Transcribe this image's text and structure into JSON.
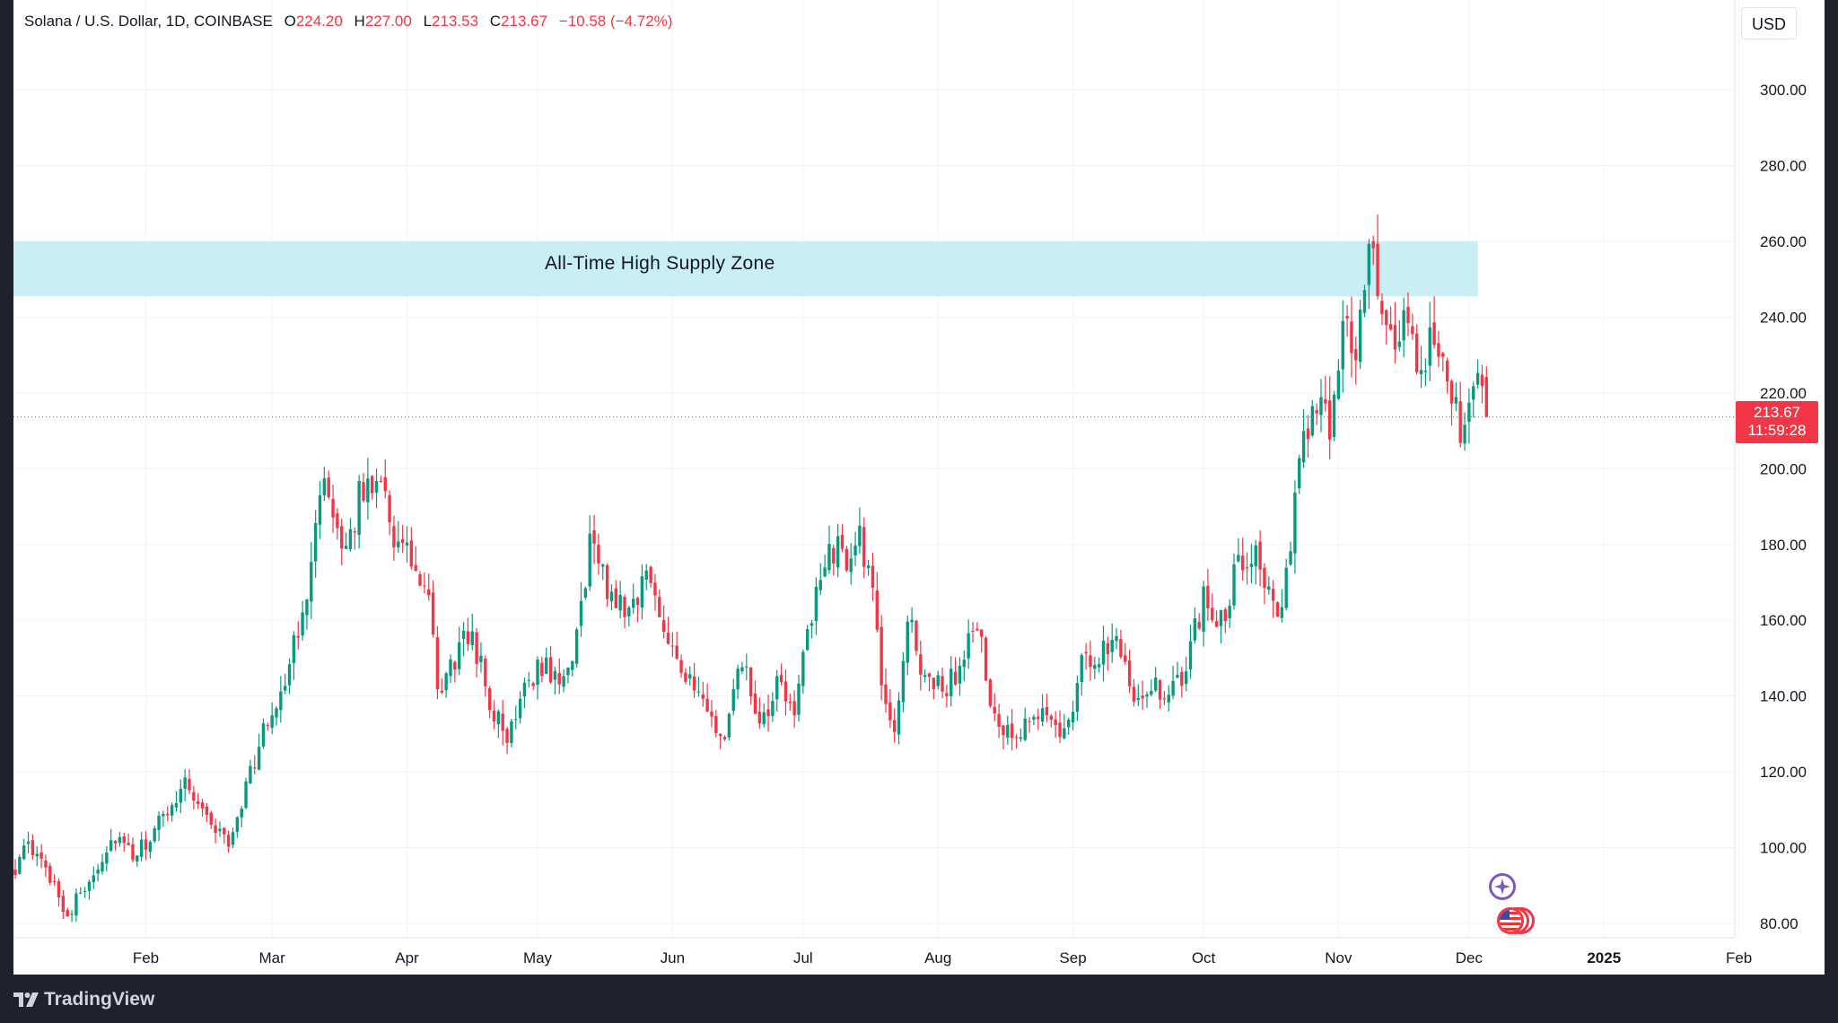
{
  "legend": {
    "symbol": "Solana / U.S. Dollar, 1D, COINBASE",
    "open_label": "O",
    "open_value": "224.20",
    "high_label": "H",
    "high_value": "227.00",
    "low_label": "L",
    "low_value": "213.53",
    "close_label": "C",
    "close_value": "213.67",
    "change": "−10.58 (−4.72%)"
  },
  "currency_button": "USD",
  "price_tag": {
    "price": "213.67",
    "countdown": "11:59:28"
  },
  "branding": {
    "logo_text": "TradingView"
  },
  "colors": {
    "up": "#089981",
    "down": "#f23645",
    "zone": "#c9eef4",
    "grid": "#f0f3fa",
    "axis_text": "#131722",
    "background": "#ffffff",
    "frame": "#1e222d"
  },
  "icons": [
    "star-event-icon",
    "us-flag-event-icon",
    "tradingview-logo-icon"
  ],
  "chart_data": {
    "type": "candlestick",
    "symbol": "SOLUSD",
    "timeframe": "1D",
    "exchange": "COINBASE",
    "ylim": [
      75,
      315
    ],
    "y_ticks": [
      "80.00",
      "100.00",
      "120.00",
      "140.00",
      "160.00",
      "180.00",
      "200.00",
      "220.00",
      "240.00",
      "260.00",
      "280.00",
      "300.00"
    ],
    "x_ticks": [
      {
        "label": "Feb",
        "day": 31
      },
      {
        "label": "Mar",
        "day": 60
      },
      {
        "label": "Apr",
        "day": 91
      },
      {
        "label": "May",
        "day": 121
      },
      {
        "label": "Jun",
        "day": 152
      },
      {
        "label": "Jul",
        "day": 182
      },
      {
        "label": "Aug",
        "day": 213
      },
      {
        "label": "Sep",
        "day": 244
      },
      {
        "label": "Oct",
        "day": 274
      },
      {
        "label": "Nov",
        "day": 305
      },
      {
        "label": "Dec",
        "day": 335
      },
      {
        "label": "2025",
        "day": 366
      },
      {
        "label": "Feb",
        "day": 397
      }
    ],
    "x_range_days": [
      1,
      405
    ],
    "grid": true,
    "last_price": 213.67,
    "zone": {
      "label": "All-Time High Supply Zone",
      "low": 245.5,
      "high": 260,
      "end_day": 337
    },
    "anchors": [
      {
        "day": 1,
        "price": 95
      },
      {
        "day": 4,
        "price": 100
      },
      {
        "day": 10,
        "price": 91
      },
      {
        "day": 13,
        "price": 82
      },
      {
        "day": 18,
        "price": 92
      },
      {
        "day": 24,
        "price": 103
      },
      {
        "day": 28,
        "price": 97
      },
      {
        "day": 33,
        "price": 104
      },
      {
        "day": 40,
        "price": 118
      },
      {
        "day": 45,
        "price": 108
      },
      {
        "day": 50,
        "price": 101
      },
      {
        "day": 55,
        "price": 120
      },
      {
        "day": 58,
        "price": 130
      },
      {
        "day": 63,
        "price": 145
      },
      {
        "day": 67,
        "price": 160
      },
      {
        "day": 71,
        "price": 197
      },
      {
        "day": 73,
        "price": 190
      },
      {
        "day": 76,
        "price": 175
      },
      {
        "day": 80,
        "price": 192
      },
      {
        "day": 85,
        "price": 200
      },
      {
        "day": 88,
        "price": 182
      },
      {
        "day": 92,
        "price": 175
      },
      {
        "day": 96,
        "price": 165
      },
      {
        "day": 98,
        "price": 140
      },
      {
        "day": 102,
        "price": 150
      },
      {
        "day": 106,
        "price": 157
      },
      {
        "day": 110,
        "price": 138
      },
      {
        "day": 114,
        "price": 128
      },
      {
        "day": 118,
        "price": 145
      },
      {
        "day": 123,
        "price": 148
      },
      {
        "day": 127,
        "price": 142
      },
      {
        "day": 131,
        "price": 162
      },
      {
        "day": 133,
        "price": 182
      },
      {
        "day": 137,
        "price": 168
      },
      {
        "day": 142,
        "price": 163
      },
      {
        "day": 146,
        "price": 172
      },
      {
        "day": 150,
        "price": 160
      },
      {
        "day": 155,
        "price": 145
      },
      {
        "day": 160,
        "price": 135
      },
      {
        "day": 164,
        "price": 128
      },
      {
        "day": 168,
        "price": 150
      },
      {
        "day": 172,
        "price": 130
      },
      {
        "day": 176,
        "price": 142
      },
      {
        "day": 180,
        "price": 138
      },
      {
        "day": 184,
        "price": 160
      },
      {
        "day": 188,
        "price": 180
      },
      {
        "day": 192,
        "price": 176
      },
      {
        "day": 195,
        "price": 184
      },
      {
        "day": 198,
        "price": 165
      },
      {
        "day": 201,
        "price": 135
      },
      {
        "day": 203,
        "price": 132
      },
      {
        "day": 206,
        "price": 160
      },
      {
        "day": 210,
        "price": 145
      },
      {
        "day": 214,
        "price": 142
      },
      {
        "day": 218,
        "price": 147
      },
      {
        "day": 222,
        "price": 160
      },
      {
        "day": 226,
        "price": 133
      },
      {
        "day": 230,
        "price": 128
      },
      {
        "day": 234,
        "price": 132
      },
      {
        "day": 238,
        "price": 136
      },
      {
        "day": 242,
        "price": 130
      },
      {
        "day": 246,
        "price": 148
      },
      {
        "day": 250,
        "price": 150
      },
      {
        "day": 254,
        "price": 158
      },
      {
        "day": 258,
        "price": 140
      },
      {
        "day": 262,
        "price": 143
      },
      {
        "day": 266,
        "price": 138
      },
      {
        "day": 270,
        "price": 148
      },
      {
        "day": 274,
        "price": 166
      },
      {
        "day": 278,
        "price": 160
      },
      {
        "day": 282,
        "price": 175
      },
      {
        "day": 286,
        "price": 180
      },
      {
        "day": 289,
        "price": 168
      },
      {
        "day": 292,
        "price": 160
      },
      {
        "day": 296,
        "price": 200
      },
      {
        "day": 299,
        "price": 218
      },
      {
        "day": 303,
        "price": 210
      },
      {
        "day": 306,
        "price": 240
      },
      {
        "day": 309,
        "price": 232
      },
      {
        "day": 312,
        "price": 257
      },
      {
        "day": 315,
        "price": 242
      },
      {
        "day": 318,
        "price": 232
      },
      {
        "day": 321,
        "price": 238
      },
      {
        "day": 324,
        "price": 224
      },
      {
        "day": 327,
        "price": 236
      },
      {
        "day": 330,
        "price": 228
      },
      {
        "day": 333,
        "price": 212
      },
      {
        "day": 336,
        "price": 224
      },
      {
        "day": 339,
        "price": 213.67
      }
    ]
  }
}
